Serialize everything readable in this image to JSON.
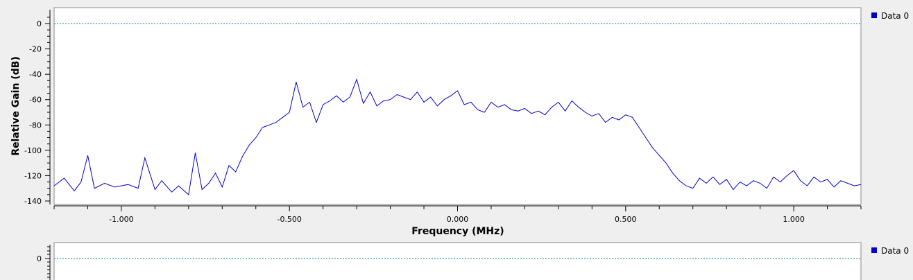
{
  "colors": {
    "background": "#efefef",
    "plot_background": "#ffffff",
    "trace": "#0000cc",
    "reference_line": "#0080a0",
    "legend_swatch": "#0000cc"
  },
  "chart_data": [
    {
      "type": "line",
      "title": "",
      "xlabel": "Frequency (MHz)",
      "ylabel": "Relative Gain (dB)",
      "xlim": [
        -1.2,
        1.2
      ],
      "ylim": [
        -140,
        10
      ],
      "xticks": [
        -1.0,
        -0.5,
        0.0,
        0.5,
        1.0
      ],
      "xtick_labels": [
        "-1.000",
        "-0.500",
        "0.000",
        "0.500",
        "1.000"
      ],
      "yticks": [
        0,
        -20,
        -40,
        -60,
        -80,
        -100,
        -120,
        -140
      ],
      "ytick_labels": [
        "0",
        "-20",
        "-40",
        "-60",
        "-80",
        "-100",
        "-120",
        "-140"
      ],
      "grid": false,
      "reference_line_y": 0,
      "legend": "right",
      "series": [
        {
          "name": "Data 0",
          "x": [
            -1.2,
            -1.17,
            -1.14,
            -1.12,
            -1.1,
            -1.08,
            -1.05,
            -1.02,
            -1.0,
            -0.98,
            -0.95,
            -0.93,
            -0.9,
            -0.88,
            -0.85,
            -0.83,
            -0.8,
            -0.78,
            -0.76,
            -0.74,
            -0.72,
            -0.7,
            -0.68,
            -0.66,
            -0.64,
            -0.62,
            -0.6,
            -0.58,
            -0.56,
            -0.54,
            -0.52,
            -0.5,
            -0.48,
            -0.46,
            -0.44,
            -0.42,
            -0.4,
            -0.38,
            -0.36,
            -0.34,
            -0.32,
            -0.3,
            -0.28,
            -0.26,
            -0.24,
            -0.22,
            -0.2,
            -0.18,
            -0.16,
            -0.14,
            -0.12,
            -0.1,
            -0.08,
            -0.06,
            -0.04,
            -0.02,
            0.0,
            0.02,
            0.04,
            0.06,
            0.08,
            0.1,
            0.12,
            0.14,
            0.16,
            0.18,
            0.2,
            0.22,
            0.24,
            0.26,
            0.28,
            0.3,
            0.32,
            0.34,
            0.36,
            0.38,
            0.4,
            0.42,
            0.44,
            0.46,
            0.48,
            0.5,
            0.52,
            0.54,
            0.56,
            0.58,
            0.6,
            0.62,
            0.64,
            0.66,
            0.68,
            0.7,
            0.72,
            0.74,
            0.76,
            0.78,
            0.8,
            0.82,
            0.84,
            0.86,
            0.88,
            0.9,
            0.92,
            0.94,
            0.96,
            0.98,
            1.0,
            1.02,
            1.04,
            1.06,
            1.08,
            1.1,
            1.12,
            1.14,
            1.16,
            1.18,
            1.2
          ],
          "y": [
            -128,
            -122,
            -132,
            -125,
            -104,
            -130,
            -126,
            -129,
            -128,
            -127,
            -130,
            -106,
            -131,
            -124,
            -133,
            -128,
            -135,
            -102,
            -131,
            -126,
            -118,
            -129,
            -112,
            -117,
            -105,
            -96,
            -90,
            -82,
            -80,
            -78,
            -74,
            -70,
            -46,
            -66,
            -62,
            -78,
            -64,
            -61,
            -57,
            -62,
            -58,
            -44,
            -63,
            -54,
            -65,
            -61,
            -60,
            -56,
            -58,
            -60,
            -54,
            -62,
            -58,
            -65,
            -60,
            -57,
            -53,
            -64,
            -62,
            -68,
            -70,
            -62,
            -66,
            -64,
            -68,
            -69,
            -67,
            -71,
            -69,
            -72,
            -66,
            -62,
            -69,
            -61,
            -66,
            -70,
            -73,
            -71,
            -78,
            -74,
            -76,
            -72,
            -74,
            -82,
            -90,
            -98,
            -104,
            -110,
            -118,
            -124,
            -128,
            -130,
            -122,
            -126,
            -121,
            -127,
            -123,
            -131,
            -125,
            -128,
            -124,
            -126,
            -130,
            -121,
            -125,
            -120,
            -116,
            -124,
            -128,
            -121,
            -125,
            -123,
            -129,
            -124,
            -126,
            -128,
            -127
          ]
        }
      ]
    },
    {
      "type": "line",
      "title": "",
      "xlabel": "",
      "ylabel": "",
      "ylim": [
        -20,
        10
      ],
      "yticks": [
        0
      ],
      "ytick_labels": [
        "0"
      ],
      "grid": false,
      "reference_line_y": 0,
      "legend": "right",
      "series": [
        {
          "name": "Data 0",
          "x": [],
          "y": []
        }
      ]
    }
  ]
}
